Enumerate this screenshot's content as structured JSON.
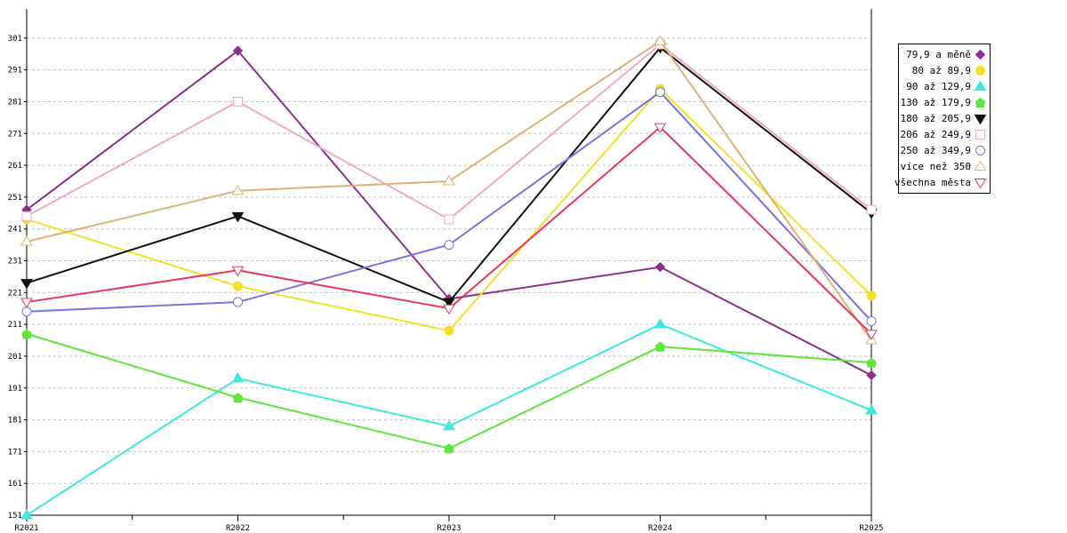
{
  "chart_data": {
    "type": "line",
    "categories": [
      "R2021",
      "R2022",
      "R2023",
      "R2024",
      "R2025"
    ],
    "ylim": [
      151,
      311
    ],
    "yticks": [
      151,
      161,
      171,
      181,
      191,
      201,
      211,
      221,
      231,
      241,
      251,
      261,
      271,
      281,
      291,
      301
    ],
    "grid": true,
    "legend_position": "right",
    "series": [
      {
        "name": "79,9 a měně",
        "color": "#8b2f8f",
        "marker": "diamond",
        "filled": true,
        "values": [
          247,
          297,
          219,
          229,
          195
        ]
      },
      {
        "name": "80 až 89,9",
        "color": "#f2e12a",
        "marker": "circle",
        "filled": true,
        "values": [
          244,
          223,
          209,
          285,
          220
        ]
      },
      {
        "name": "90 až 129,9",
        "color": "#3ee8e0",
        "marker": "triangle-up",
        "filled": true,
        "values": [
          151,
          194,
          179,
          211,
          184
        ]
      },
      {
        "name": "130 až 179,9",
        "color": "#5ee63a",
        "marker": "pentagon",
        "filled": true,
        "values": [
          208,
          188,
          172,
          204,
          199
        ]
      },
      {
        "name": "180 až 205,9",
        "color": "#111111",
        "marker": "triangle-down",
        "filled": true,
        "values": [
          224,
          245,
          218,
          298,
          246
        ]
      },
      {
        "name": "206 až 249,9",
        "color": "#f0a8c8",
        "marker": "square",
        "filled": false,
        "values": [
          245,
          281,
          244,
          299,
          247
        ]
      },
      {
        "name": "250 až 349,9",
        "color": "#7a72e0",
        "marker": "circle",
        "filled": false,
        "values": [
          215,
          218,
          236,
          284,
          212
        ]
      },
      {
        "name": "více než 350",
        "color": "#deb078",
        "marker": "triangle-up",
        "filled": false,
        "values": [
          237,
          253,
          256,
          300,
          206
        ]
      },
      {
        "name": "všechna města",
        "color": "#e8365e",
        "marker": "triangle-down",
        "filled": false,
        "values": [
          218,
          228,
          216,
          273,
          208
        ]
      }
    ]
  }
}
